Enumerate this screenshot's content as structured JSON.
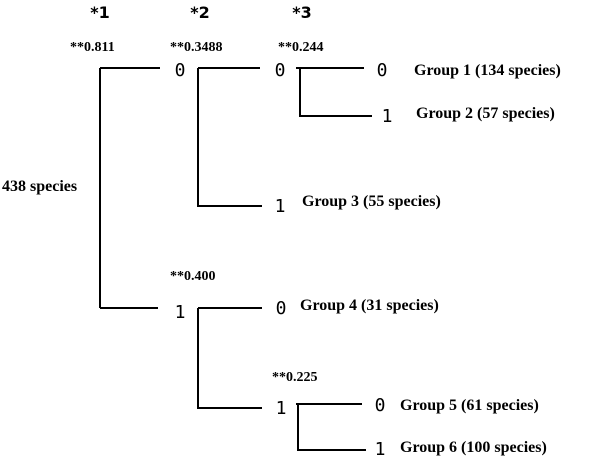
{
  "header": {
    "level1": "*1",
    "level2": "*2",
    "level3": "*3"
  },
  "root": {
    "label": "438 species"
  },
  "splits": {
    "s1": "**0.811",
    "s2": "**0.3488",
    "s3": "**0.244",
    "s4": "**0.400",
    "s5": "**0.225"
  },
  "branch_codes": {
    "b_top": "0",
    "b_bottom": "1",
    "b_s2_top": "0",
    "b_s2_bottom": "1",
    "b_g1": "0",
    "b_g2": "1",
    "b_g4": "0",
    "b_s4_bottom": "1",
    "b_g5": "0",
    "b_g6": "1"
  },
  "groups": {
    "g1": "Group 1 (134 species)",
    "g2": "Group 2 (57 species)",
    "g3": "Group 3 (55 species)",
    "g4": "Group 4 (31 species)",
    "g5": "Group 5 (61 species)",
    "g6": "Group 6 (100 species)"
  }
}
